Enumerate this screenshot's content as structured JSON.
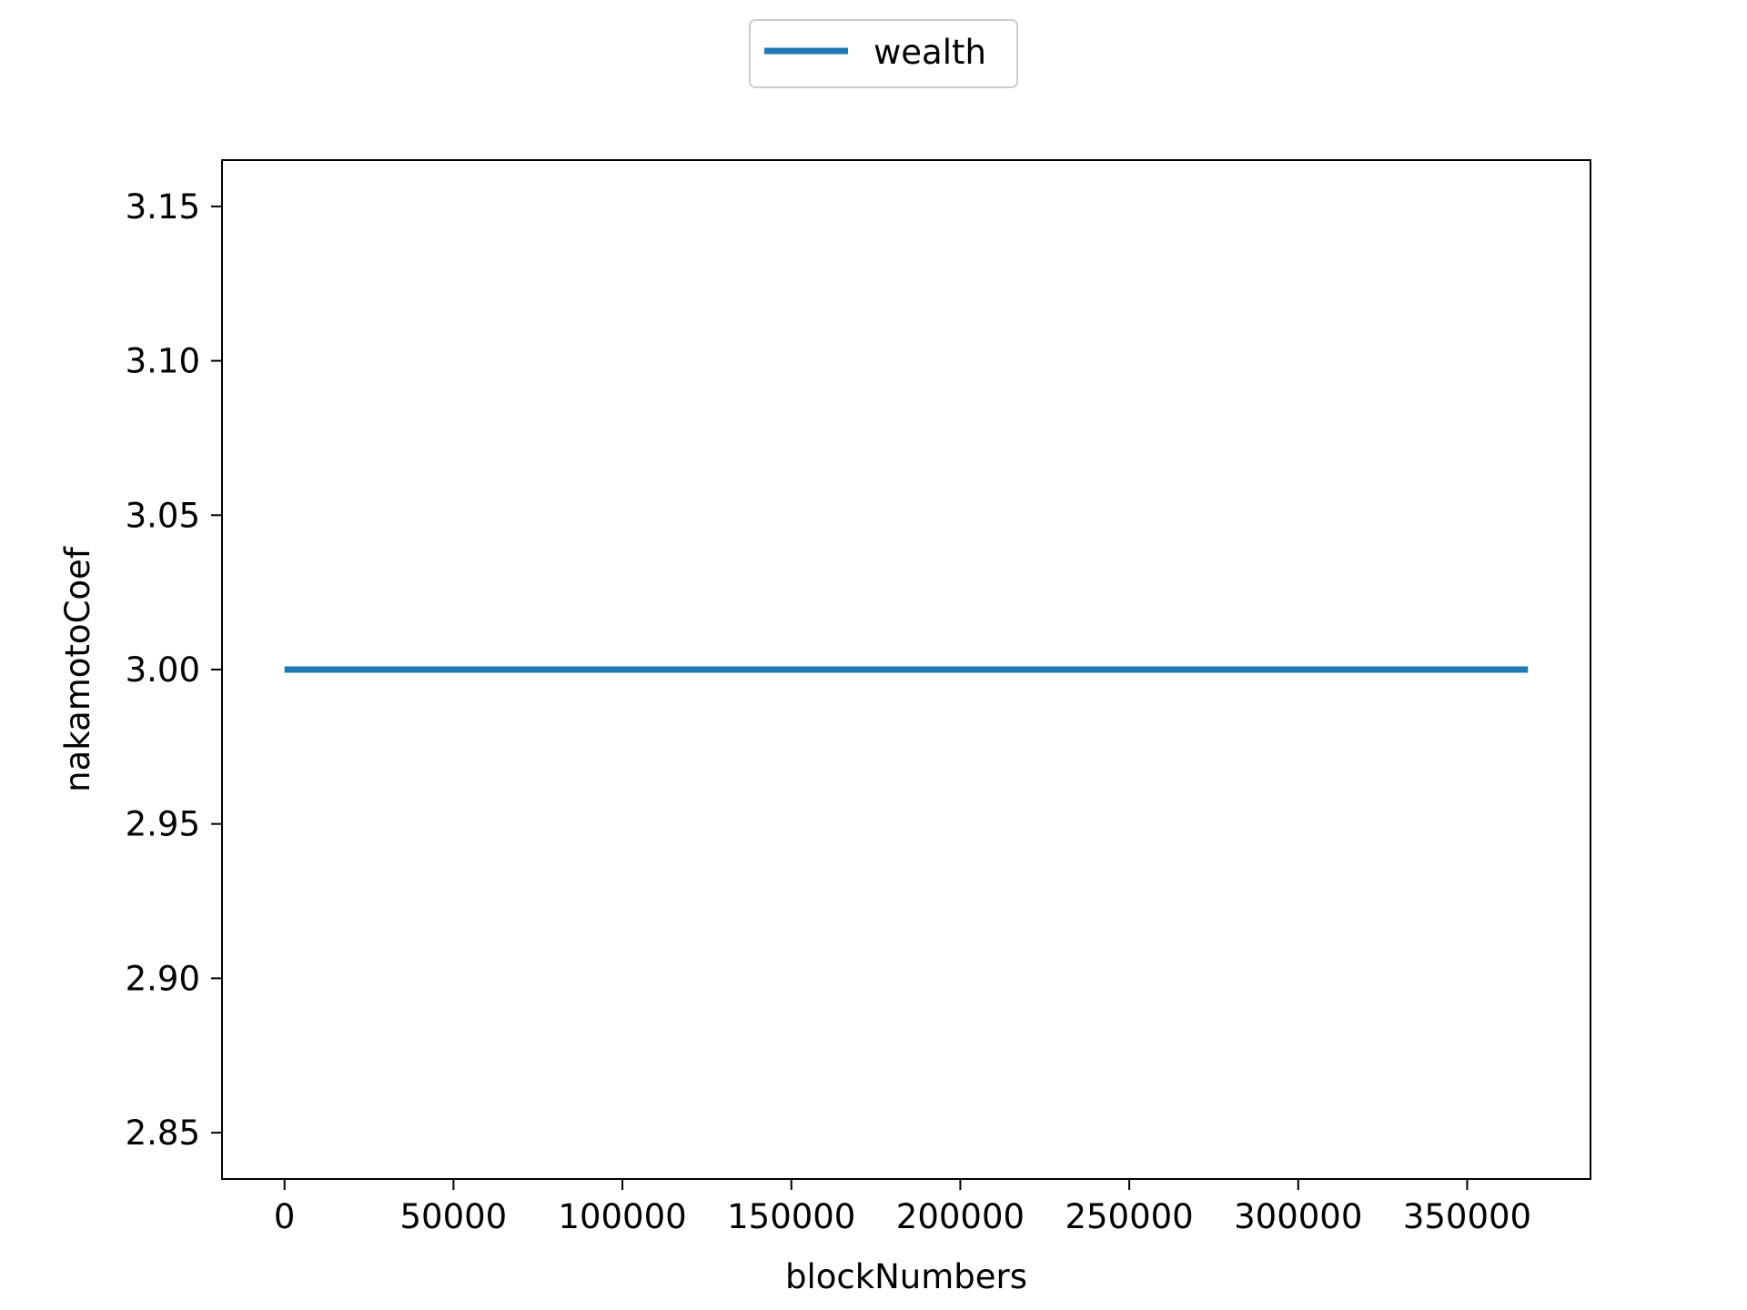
{
  "chart_data": {
    "type": "line",
    "xlabel": "blockNumbers",
    "ylabel": "nakamotoCoef",
    "xlim": [
      -18500,
      386500
    ],
    "ylim": [
      2.835,
      3.165
    ],
    "xticks": [
      0,
      50000,
      100000,
      150000,
      200000,
      250000,
      300000,
      350000
    ],
    "xtick_labels": [
      "0",
      "50000",
      "100000",
      "150000",
      "200000",
      "250000",
      "300000",
      "350000"
    ],
    "yticks": [
      2.85,
      2.9,
      2.95,
      3.0,
      3.05,
      3.1,
      3.15
    ],
    "ytick_labels": [
      "2.85",
      "2.90",
      "2.95",
      "3.00",
      "3.05",
      "3.10",
      "3.15"
    ],
    "grid": false,
    "legend": {
      "placement": "top-center"
    },
    "series": [
      {
        "name": "wealth",
        "color": "#1f77b4",
        "x": [
          0,
          368000
        ],
        "y": [
          3.0,
          3.0
        ]
      }
    ]
  }
}
